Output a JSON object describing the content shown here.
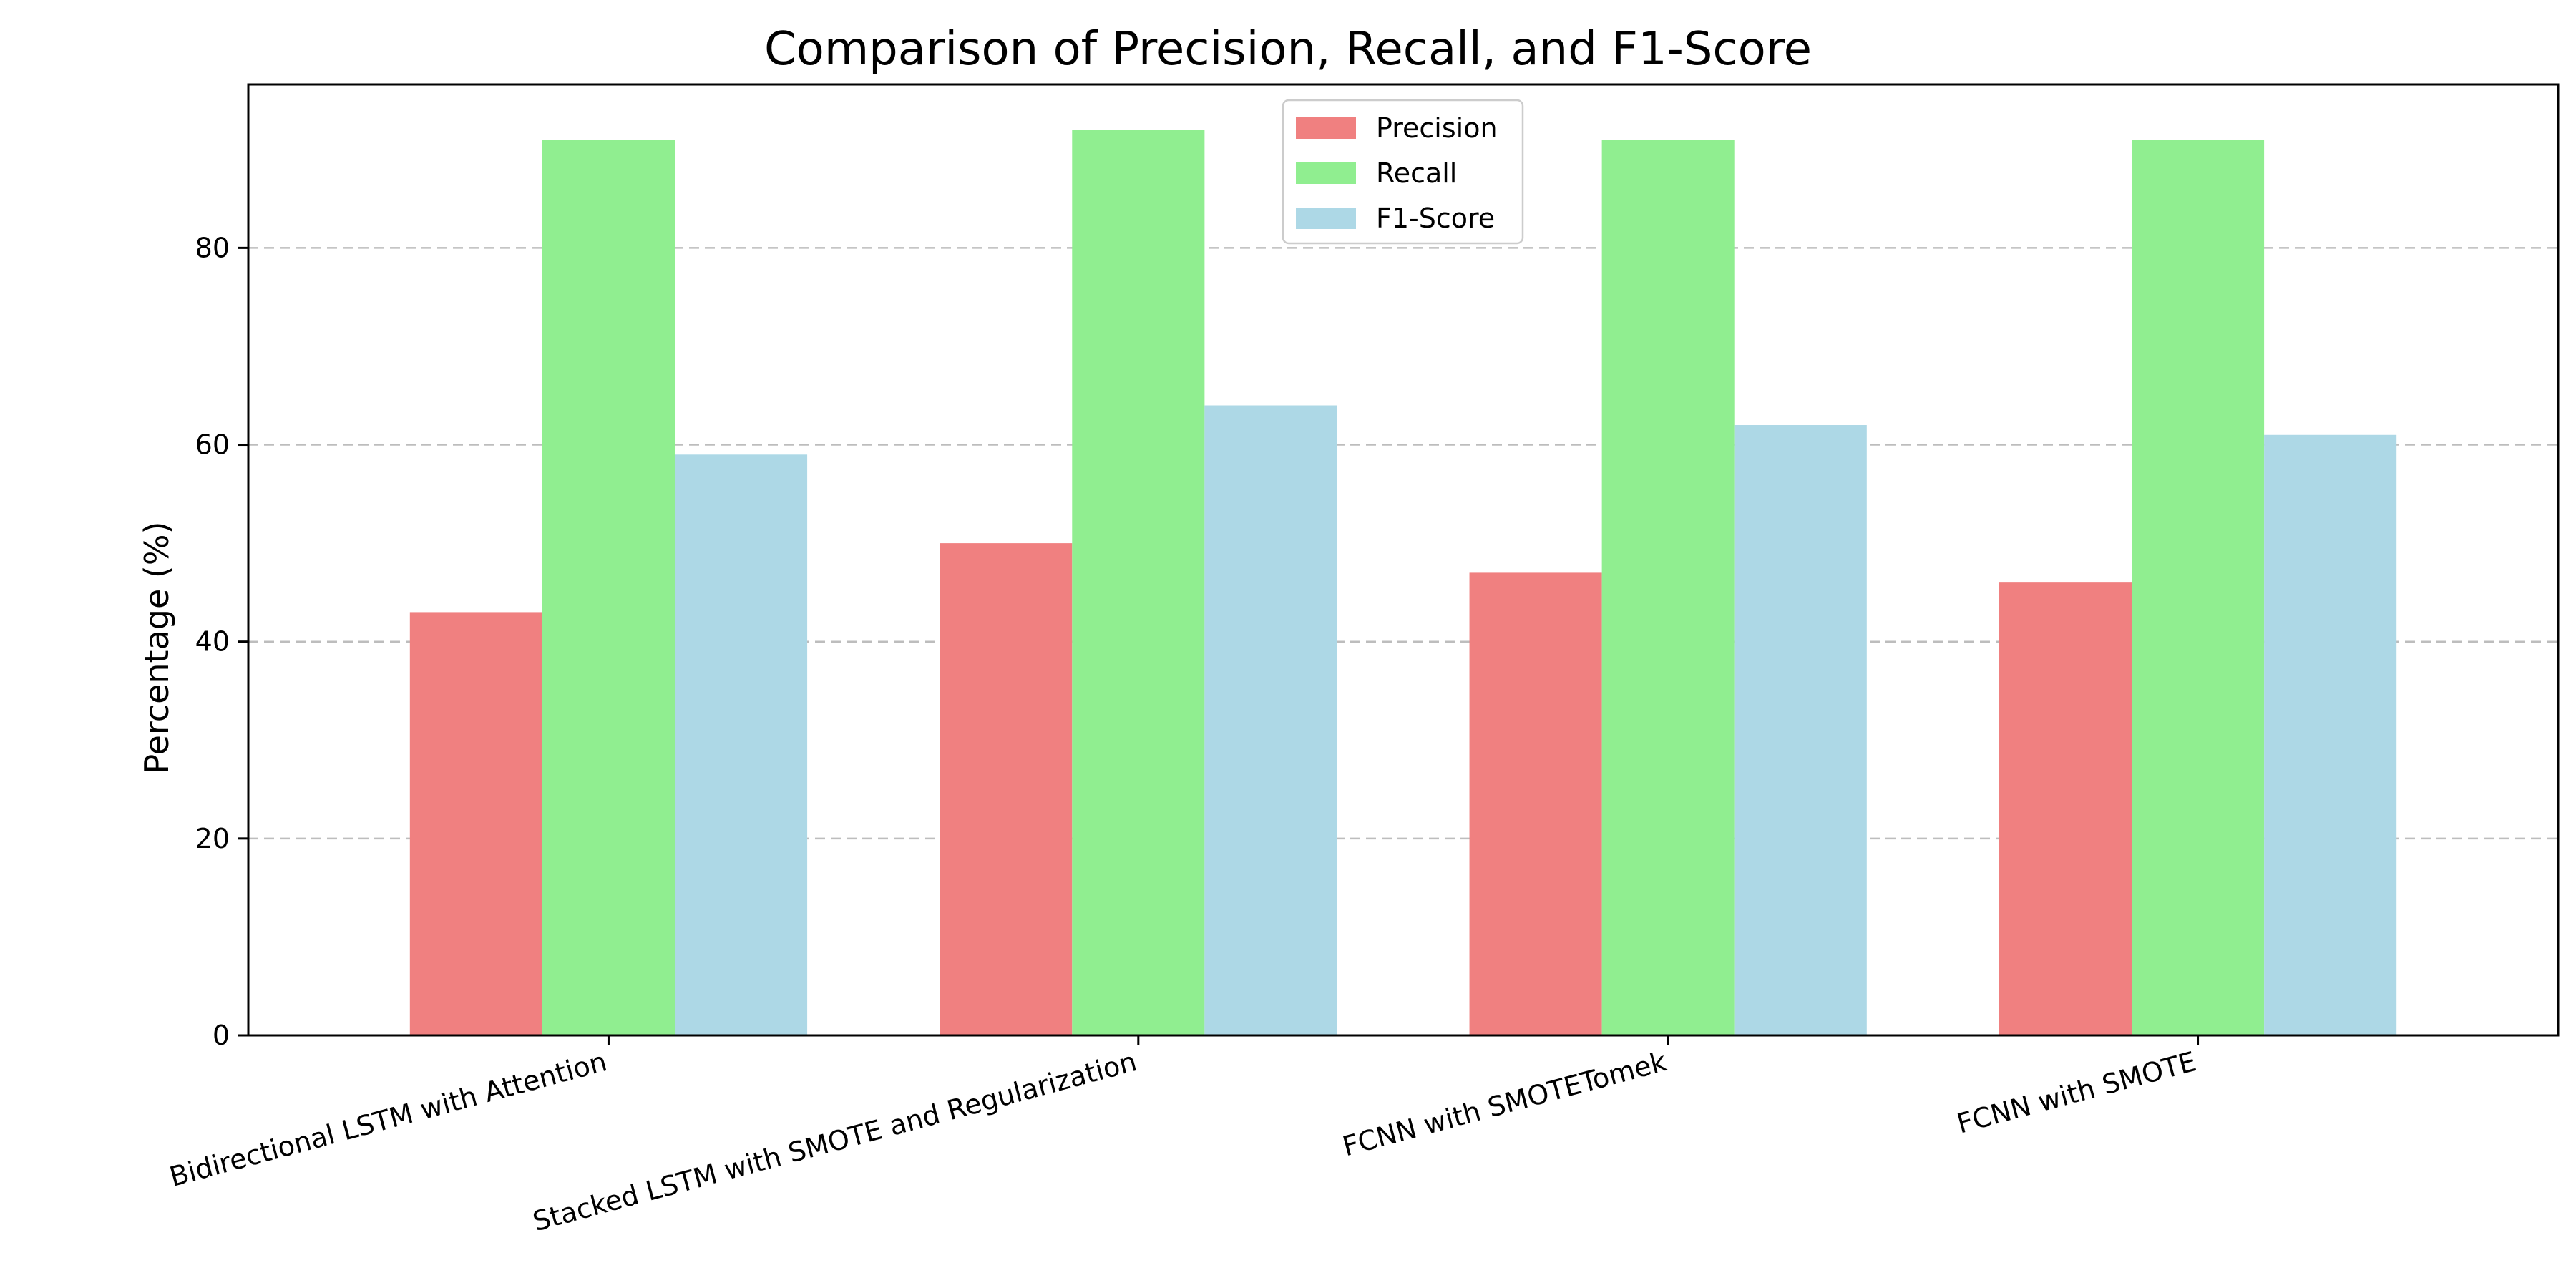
{
  "chart_data": {
    "type": "bar",
    "title": "Comparison of Precision, Recall, and F1-Score",
    "xlabel": "",
    "ylabel": "Percentage (%)",
    "ylim": [
      0,
      96.6
    ],
    "yticks": [
      0,
      20,
      40,
      60,
      80
    ],
    "grid": "y-dashed",
    "legend_position": "top-center",
    "categories": [
      "Bidirectional LSTM with Attention",
      "Stacked LSTM with SMOTE and Regularization",
      "FCNN with SMOTETomek",
      "FCNN with SMOTE"
    ],
    "series": [
      {
        "name": "Precision",
        "color": "#f08080",
        "values": [
          43,
          50,
          47,
          46
        ]
      },
      {
        "name": "Recall",
        "color": "#90ee90",
        "values": [
          91,
          92,
          91,
          91
        ]
      },
      {
        "name": "F1-Score",
        "color": "#add8e6",
        "values": [
          59,
          64,
          62,
          61
        ]
      }
    ]
  }
}
